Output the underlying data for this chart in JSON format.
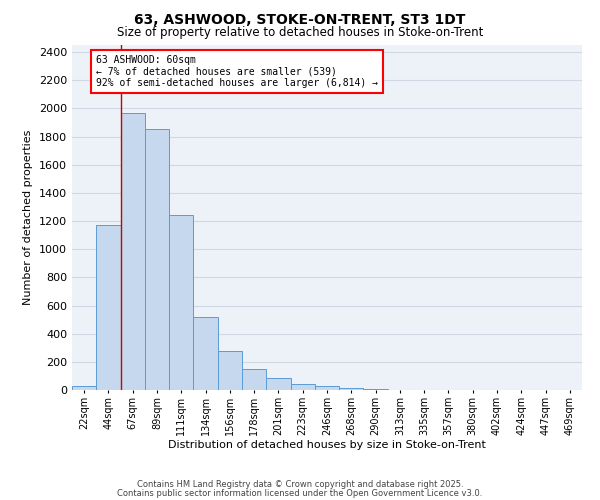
{
  "title": "63, ASHWOOD, STOKE-ON-TRENT, ST3 1DT",
  "subtitle": "Size of property relative to detached houses in Stoke-on-Trent",
  "xlabel": "Distribution of detached houses by size in Stoke-on-Trent",
  "ylabel": "Number of detached properties",
  "bin_labels": [
    "22sqm",
    "44sqm",
    "67sqm",
    "89sqm",
    "111sqm",
    "134sqm",
    "156sqm",
    "178sqm",
    "201sqm",
    "223sqm",
    "246sqm",
    "268sqm",
    "290sqm",
    "313sqm",
    "335sqm",
    "357sqm",
    "380sqm",
    "402sqm",
    "424sqm",
    "447sqm",
    "469sqm"
  ],
  "bar_values": [
    30,
    1170,
    1970,
    1850,
    1245,
    520,
    275,
    148,
    85,
    40,
    30,
    12,
    8,
    0,
    0,
    0,
    0,
    0,
    0,
    0,
    0
  ],
  "bar_color": "#c5d8ed",
  "bar_edge_color": "#5b9bd5",
  "vline_color": "#cc0000",
  "annotation_box_text": "63 ASHWOOD: 60sqm\n← 7% of detached houses are smaller (539)\n92% of semi-detached houses are larger (6,814) →",
  "ylim": [
    0,
    2450
  ],
  "yticks": [
    0,
    200,
    400,
    600,
    800,
    1000,
    1200,
    1400,
    1600,
    1800,
    2000,
    2200,
    2400
  ],
  "grid_color": "#d0d8e4",
  "background_color": "#edf2f8",
  "footer_line1": "Contains HM Land Registry data © Crown copyright and database right 2025.",
  "footer_line2": "Contains public sector information licensed under the Open Government Licence v3.0."
}
